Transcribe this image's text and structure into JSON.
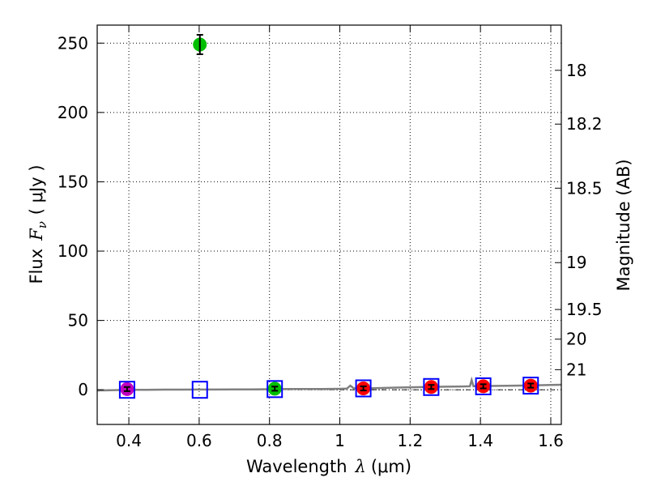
{
  "chart_data": {
    "type": "scatter",
    "title": "",
    "xlabel_prefix": "Wavelength",
    "xlabel_symbol": "λ",
    "xlabel_unit": "(μm)",
    "ylabel_prefix": "Flux",
    "ylabel_symbol": "F",
    "ylabel_subscript": "ν",
    "ylabel_unit": "( μJy )",
    "y2label": "Magnitude (AB)",
    "xlim": [
      0.31,
      1.63
    ],
    "ylim": [
      -25,
      263
    ],
    "grid": true,
    "x_ticks": [
      0.4,
      0.6,
      0.8,
      1.0,
      1.2,
      1.4,
      1.6
    ],
    "x_tick_labels": [
      "0.4",
      "0.6",
      "0.8",
      "1",
      "1.2",
      "1.4",
      "1.6"
    ],
    "y_ticks": [
      0,
      50,
      100,
      150,
      200,
      250
    ],
    "y_tick_labels": [
      "0",
      "50",
      "100",
      "150",
      "200",
      "250"
    ],
    "y2_ticks": [
      {
        "label": "18",
        "flux": 230.4
      },
      {
        "label": "18.2",
        "flux": 191.6
      },
      {
        "label": "18.5",
        "flux": 145.4
      },
      {
        "label": "19",
        "flux": 91.7
      },
      {
        "label": "19.5",
        "flux": 57.9
      },
      {
        "label": "20",
        "flux": 36.5
      },
      {
        "label": "21",
        "flux": 14.5
      }
    ],
    "observed_points": [
      {
        "x": 0.395,
        "y": 0.5,
        "err": 1.5,
        "color": "#bf00bf"
      },
      {
        "x": 0.602,
        "y": 249.0,
        "err": 7.0,
        "color": "#00bf00"
      },
      {
        "x": 0.815,
        "y": 0.8,
        "err": 1.5,
        "color": "#00bf00"
      },
      {
        "x": 1.067,
        "y": 1.0,
        "err": 1.5,
        "color": "#ff0000"
      },
      {
        "x": 1.26,
        "y": 2.0,
        "err": 1.5,
        "color": "#ff0000"
      },
      {
        "x": 1.408,
        "y": 2.5,
        "err": 1.5,
        "color": "#ff0000"
      },
      {
        "x": 1.543,
        "y": 3.0,
        "err": 1.5,
        "color": "#ff0000"
      }
    ],
    "model_points": [
      {
        "x": 0.395,
        "y": 0.0
      },
      {
        "x": 0.602,
        "y": 0.0
      },
      {
        "x": 0.815,
        "y": 0.5
      },
      {
        "x": 1.067,
        "y": 1.0
      },
      {
        "x": 1.26,
        "y": 2.0
      },
      {
        "x": 1.408,
        "y": 2.5
      },
      {
        "x": 1.543,
        "y": 3.0
      }
    ],
    "model_color": "#0000ff",
    "spectrum": {
      "color": "#808080",
      "x": [
        0.31,
        0.35,
        0.4,
        0.45,
        0.5,
        0.55,
        0.6,
        0.65,
        0.7,
        0.75,
        0.8,
        0.85,
        0.9,
        0.95,
        1.0,
        1.02,
        1.03,
        1.04,
        1.06,
        1.1,
        1.15,
        1.2,
        1.25,
        1.3,
        1.35,
        1.37,
        1.375,
        1.38,
        1.4,
        1.45,
        1.5,
        1.55,
        1.6,
        1.63
      ],
      "y": [
        -0.5,
        -0.3,
        0.0,
        0.0,
        0.1,
        0.1,
        0.2,
        0.2,
        0.3,
        0.3,
        0.4,
        0.5,
        0.5,
        0.6,
        0.7,
        0.8,
        3.0,
        1.0,
        1.0,
        1.2,
        1.5,
        1.8,
        2.0,
        2.2,
        2.4,
        2.5,
        7.0,
        2.6,
        2.7,
        2.8,
        3.0,
        3.2,
        3.5,
        3.6
      ]
    },
    "reference_line_y": 0
  }
}
